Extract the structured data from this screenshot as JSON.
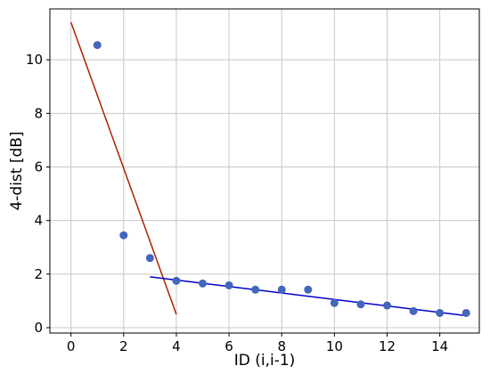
{
  "chart_data": {
    "type": "scatter",
    "xlabel": "ID (i,i-1)",
    "ylabel": "4-dist [dB]",
    "xlim": [
      -0.8,
      15.5
    ],
    "ylim": [
      -0.2,
      11.9
    ],
    "xticks": [
      0,
      2,
      4,
      6,
      8,
      10,
      12,
      14
    ],
    "yticks": [
      0,
      2,
      4,
      6,
      8,
      10
    ],
    "grid": true,
    "series": [
      {
        "type": "scatter",
        "color": "#4466bb",
        "x": [
          1,
          2,
          3,
          4,
          5,
          6,
          7,
          8,
          9,
          10,
          11,
          12,
          13,
          14,
          15
        ],
        "y": [
          10.55,
          3.45,
          2.6,
          1.75,
          1.65,
          1.58,
          1.42,
          1.42,
          1.42,
          0.92,
          0.87,
          0.83,
          0.62,
          0.55,
          0.55
        ]
      },
      {
        "type": "line",
        "color": "#aa2200",
        "x": [
          0,
          4
        ],
        "y": [
          11.4,
          0.5
        ]
      },
      {
        "type": "line",
        "color": "#0000cc",
        "x": [
          3,
          15
        ],
        "y": [
          1.9,
          0.45
        ]
      }
    ]
  }
}
